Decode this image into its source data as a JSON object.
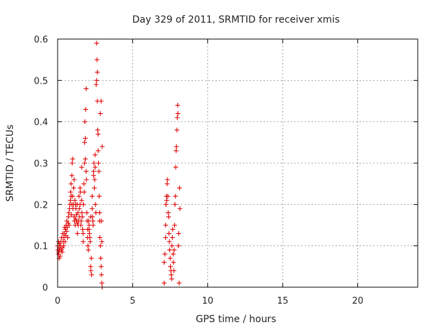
{
  "chart_data": {
    "type": "scatter",
    "title": "Day 329 of 2011, SRMTID for receiver xmis",
    "xlabel": "GPS time / hours",
    "ylabel": "SRMTID / TECUs",
    "xlim": [
      0,
      24
    ],
    "ylim": [
      0,
      0.6
    ],
    "xticks": [
      0,
      5,
      10,
      15,
      20
    ],
    "yticks": [
      0,
      0.1,
      0.2,
      0.3,
      0.4,
      0.5,
      0.6
    ],
    "xtick_labels": [
      "0",
      "5",
      "10",
      "15",
      "20"
    ],
    "ytick_labels": [
      "0",
      "0.1",
      "0.2",
      "0.3",
      "0.4",
      "0.5",
      "0.6"
    ],
    "grid": true,
    "marker": "+",
    "marker_color": "#e00000",
    "series": [
      {
        "points": [
          [
            0.0,
            0.1
          ],
          [
            0.02,
            0.09
          ],
          [
            0.05,
            0.08
          ],
          [
            0.07,
            0.11
          ],
          [
            0.08,
            0.085
          ],
          [
            0.1,
            0.07
          ],
          [
            0.1,
            0.095
          ],
          [
            0.12,
            0.105
          ],
          [
            0.15,
            0.09
          ],
          [
            0.17,
            0.075
          ],
          [
            0.2,
            0.1
          ],
          [
            0.22,
            0.11
          ],
          [
            0.25,
            0.09
          ],
          [
            0.27,
            0.12
          ],
          [
            0.3,
            0.085
          ],
          [
            0.32,
            0.095
          ],
          [
            0.35,
            0.13
          ],
          [
            0.37,
            0.11
          ],
          [
            0.4,
            0.1
          ],
          [
            0.42,
            0.12
          ],
          [
            0.45,
            0.13
          ],
          [
            0.47,
            0.145
          ],
          [
            0.5,
            0.11
          ],
          [
            0.52,
            0.14
          ],
          [
            0.55,
            0.125
          ],
          [
            0.57,
            0.15
          ],
          [
            0.6,
            0.135
          ],
          [
            0.62,
            0.16
          ],
          [
            0.65,
            0.145
          ],
          [
            0.67,
            0.12
          ],
          [
            0.7,
            0.155
          ],
          [
            0.72,
            0.17
          ],
          [
            0.75,
            0.18
          ],
          [
            0.77,
            0.15
          ],
          [
            0.8,
            0.19
          ],
          [
            0.82,
            0.2
          ],
          [
            0.85,
            0.21
          ],
          [
            0.87,
            0.23
          ],
          [
            0.9,
            0.22
          ],
          [
            0.9,
            0.25
          ],
          [
            0.92,
            0.175
          ],
          [
            0.95,
            0.2
          ],
          [
            0.95,
            0.27
          ],
          [
            0.97,
            0.3
          ],
          [
            1.0,
            0.31
          ],
          [
            1.0,
            0.22
          ],
          [
            1.02,
            0.19
          ],
          [
            1.05,
            0.2
          ],
          [
            1.07,
            0.24
          ],
          [
            1.1,
            0.26
          ],
          [
            1.1,
            0.17
          ],
          [
            1.12,
            0.16
          ],
          [
            1.15,
            0.21
          ],
          [
            1.17,
            0.15
          ],
          [
            1.2,
            0.2
          ],
          [
            1.2,
            0.165
          ],
          [
            1.22,
            0.19
          ],
          [
            1.25,
            0.175
          ],
          [
            1.27,
            0.16
          ],
          [
            1.3,
            0.2
          ],
          [
            1.3,
            0.155
          ],
          [
            1.32,
            0.13
          ],
          [
            1.35,
            0.18
          ],
          [
            1.37,
            0.15
          ],
          [
            1.4,
            0.16
          ],
          [
            1.42,
            0.22
          ],
          [
            1.45,
            0.19
          ],
          [
            1.47,
            0.17
          ],
          [
            1.5,
            0.2
          ],
          [
            1.5,
            0.24
          ],
          [
            1.52,
            0.23
          ],
          [
            1.55,
            0.15
          ],
          [
            1.57,
            0.16
          ],
          [
            1.6,
            0.29
          ],
          [
            1.6,
            0.21
          ],
          [
            1.62,
            0.18
          ],
          [
            1.65,
            0.17
          ],
          [
            1.67,
            0.14
          ],
          [
            1.7,
            0.13
          ],
          [
            1.7,
            0.11
          ],
          [
            1.72,
            0.2
          ],
          [
            1.75,
            0.25
          ],
          [
            1.77,
            0.23
          ],
          [
            1.8,
            0.3
          ],
          [
            1.8,
            0.35
          ],
          [
            1.82,
            0.4
          ],
          [
            1.85,
            0.36
          ],
          [
            1.85,
            0.31
          ],
          [
            1.87,
            0.43
          ],
          [
            1.9,
            0.48
          ],
          [
            1.9,
            0.28
          ],
          [
            1.92,
            0.26
          ],
          [
            1.95,
            0.18
          ],
          [
            1.97,
            0.16
          ],
          [
            2.0,
            0.14
          ],
          [
            2.0,
            0.12
          ],
          [
            2.02,
            0.1
          ],
          [
            2.05,
            0.09
          ],
          [
            2.07,
            0.16
          ],
          [
            2.1,
            0.15
          ],
          [
            2.1,
            0.14
          ],
          [
            2.12,
            0.13
          ],
          [
            2.15,
            0.12
          ],
          [
            2.17,
            0.11
          ],
          [
            2.2,
            0.17
          ],
          [
            2.2,
            0.05
          ],
          [
            2.22,
            0.04
          ],
          [
            2.25,
            0.07
          ],
          [
            2.27,
            0.03
          ],
          [
            2.3,
            0.22
          ],
          [
            2.3,
            0.19
          ],
          [
            2.32,
            0.17
          ],
          [
            2.35,
            0.16
          ],
          [
            2.37,
            0.15
          ],
          [
            2.4,
            0.27
          ],
          [
            2.4,
            0.28
          ],
          [
            2.42,
            0.3
          ],
          [
            2.45,
            0.24
          ],
          [
            2.47,
            0.26
          ],
          [
            2.5,
            0.32
          ],
          [
            2.5,
            0.29
          ],
          [
            2.52,
            0.2
          ],
          [
            2.55,
            0.18
          ],
          [
            2.57,
            0.49
          ],
          [
            2.6,
            0.5
          ],
          [
            2.6,
            0.59
          ],
          [
            2.62,
            0.55
          ],
          [
            2.65,
            0.52
          ],
          [
            2.65,
            0.45
          ],
          [
            2.67,
            0.38
          ],
          [
            2.7,
            0.37
          ],
          [
            2.7,
            0.33
          ],
          [
            2.72,
            0.3
          ],
          [
            2.75,
            0.28
          ],
          [
            2.77,
            0.22
          ],
          [
            2.8,
            0.18
          ],
          [
            2.8,
            0.16
          ],
          [
            2.82,
            0.12
          ],
          [
            2.85,
            0.1
          ],
          [
            2.87,
            0.07
          ],
          [
            2.9,
            0.05
          ],
          [
            2.92,
            0.03
          ],
          [
            2.95,
            0.01
          ],
          [
            2.97,
            0.0
          ],
          [
            2.95,
            0.11
          ],
          [
            2.9,
            0.45
          ],
          [
            2.85,
            0.42
          ],
          [
            2.97,
            0.34
          ],
          [
            2.92,
            0.16
          ],
          [
            7.1,
            0.01
          ],
          [
            7.1,
            0.06
          ],
          [
            7.15,
            0.08
          ],
          [
            7.2,
            0.12
          ],
          [
            7.2,
            0.15
          ],
          [
            7.22,
            0.2
          ],
          [
            7.25,
            0.22
          ],
          [
            7.27,
            0.21
          ],
          [
            7.3,
            0.25
          ],
          [
            7.32,
            0.26
          ],
          [
            7.35,
            0.22
          ],
          [
            7.37,
            0.18
          ],
          [
            7.4,
            0.17
          ],
          [
            7.42,
            0.13
          ],
          [
            7.45,
            0.11
          ],
          [
            7.47,
            0.09
          ],
          [
            7.5,
            0.07
          ],
          [
            7.52,
            0.05
          ],
          [
            7.55,
            0.04
          ],
          [
            7.57,
            0.03
          ],
          [
            7.6,
            0.02
          ],
          [
            7.62,
            0.1
          ],
          [
            7.65,
            0.12
          ],
          [
            7.67,
            0.14
          ],
          [
            7.7,
            0.08
          ],
          [
            7.72,
            0.06
          ],
          [
            7.75,
            0.04
          ],
          [
            7.77,
            0.09
          ],
          [
            7.8,
            0.15
          ],
          [
            7.82,
            0.2
          ],
          [
            7.85,
            0.22
          ],
          [
            7.87,
            0.29
          ],
          [
            7.9,
            0.33
          ],
          [
            7.92,
            0.34
          ],
          [
            7.95,
            0.38
          ],
          [
            7.97,
            0.41
          ],
          [
            8.0,
            0.44
          ],
          [
            8.02,
            0.42
          ],
          [
            8.05,
            0.1
          ],
          [
            8.07,
            0.13
          ],
          [
            8.1,
            0.01
          ],
          [
            8.12,
            0.24
          ],
          [
            8.15,
            0.19
          ]
        ]
      }
    ]
  }
}
